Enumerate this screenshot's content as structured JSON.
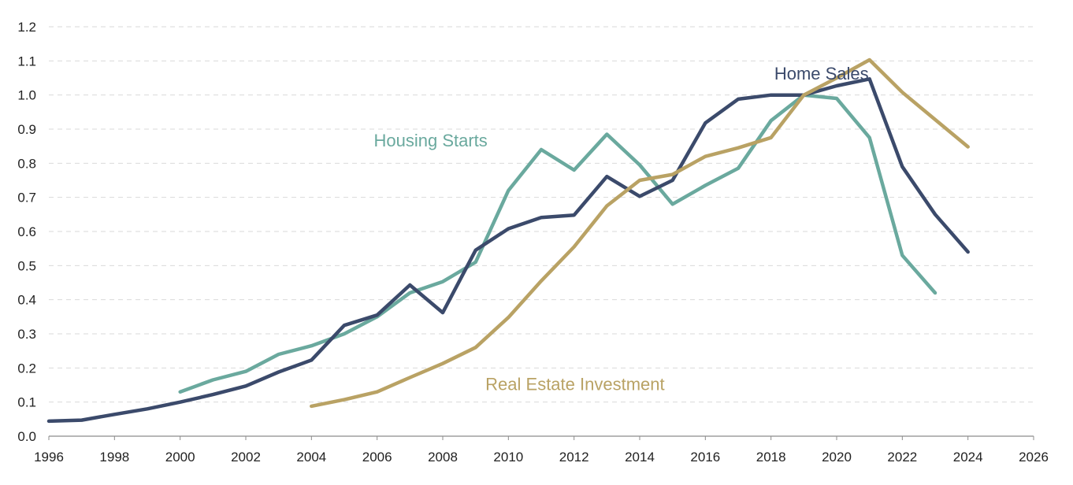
{
  "chart_data": {
    "type": "line",
    "title": "",
    "xlabel": "",
    "ylabel": "",
    "xlim": [
      1996,
      2026
    ],
    "ylim": [
      0,
      1.2
    ],
    "x_ticks": [
      1996,
      1998,
      2000,
      2002,
      2004,
      2006,
      2008,
      2010,
      2012,
      2014,
      2016,
      2018,
      2020,
      2022,
      2024,
      2026
    ],
    "y_ticks": [
      0.0,
      0.1,
      0.2,
      0.3,
      0.4,
      0.5,
      0.6,
      0.7,
      0.8,
      0.9,
      1.0,
      1.1,
      1.2
    ],
    "grid": "horizontal-dashed",
    "series": [
      {
        "name": "Housing Starts",
        "color": "#6aa99e",
        "x": [
          2000,
          2001,
          2002,
          2003,
          2004,
          2005,
          2006,
          2007,
          2008,
          2009,
          2010,
          2011,
          2012,
          2013,
          2014,
          2015,
          2016,
          2017,
          2018,
          2019,
          2020,
          2021,
          2022,
          2023
        ],
        "values": [
          0.13,
          0.165,
          0.19,
          0.24,
          0.265,
          0.3,
          0.35,
          0.42,
          0.453,
          0.51,
          0.72,
          0.84,
          0.78,
          0.885,
          0.795,
          0.68,
          0.735,
          0.785,
          0.925,
          1.0,
          0.99,
          0.875,
          0.53,
          0.42
        ]
      },
      {
        "name": "Home Sales",
        "color": "#3b4a6b",
        "x": [
          1996,
          1997,
          1998,
          1999,
          2000,
          2001,
          2002,
          2003,
          2004,
          2005,
          2006,
          2007,
          2008,
          2009,
          2010,
          2011,
          2012,
          2013,
          2014,
          2015,
          2016,
          2017,
          2018,
          2019,
          2020,
          2021,
          2022,
          2023,
          2024
        ],
        "values": [
          0.044,
          0.047,
          0.064,
          0.08,
          0.1,
          0.122,
          0.147,
          0.188,
          0.223,
          0.325,
          0.355,
          0.443,
          0.362,
          0.545,
          0.608,
          0.641,
          0.648,
          0.761,
          0.703,
          0.75,
          0.918,
          0.988,
          1.0,
          1.0,
          1.027,
          1.047,
          0.79,
          0.65,
          0.54
        ]
      },
      {
        "name": "Real Estate Investment",
        "color": "#b9a264",
        "x": [
          2004,
          2005,
          2006,
          2007,
          2008,
          2009,
          2010,
          2011,
          2012,
          2013,
          2014,
          2015,
          2016,
          2017,
          2018,
          2019,
          2020,
          2021,
          2022,
          2023,
          2024
        ],
        "values": [
          0.088,
          0.107,
          0.13,
          0.172,
          0.213,
          0.26,
          0.348,
          0.455,
          0.555,
          0.675,
          0.75,
          0.767,
          0.82,
          0.845,
          0.875,
          1.0,
          1.05,
          1.103,
          1.008,
          0.928,
          0.848
        ]
      }
    ],
    "annotations": [
      {
        "series": "Home Sales",
        "text": "Home Sales",
        "color": "#3b4a6b",
        "x": 2018.1,
        "y": 1.045
      },
      {
        "series": "Housing Starts",
        "text": "Housing Starts",
        "color": "#6aa99e",
        "x": 2005.9,
        "y": 0.849
      },
      {
        "series": "Real Estate Investment",
        "text": "Real Estate Investment",
        "color": "#b9a264",
        "x": 2009.3,
        "y": 0.135
      }
    ]
  }
}
